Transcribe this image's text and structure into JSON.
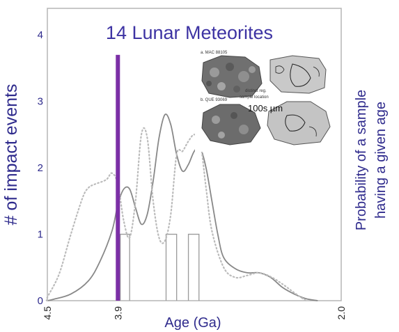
{
  "chart_data": {
    "type": "line",
    "title": "14 Lunar Meteorites",
    "xlabel": "Age (Ga)",
    "ylabel": "# of impact events",
    "ylabel_right": [
      "Probability of a sample",
      "having a given age"
    ],
    "x_reversed": true,
    "xlim": [
      4.5,
      2.0
    ],
    "ylim": [
      0,
      4.4
    ],
    "x_ticks": [
      "4.5",
      "3.9",
      "2.0"
    ],
    "y_ticks": [
      "0",
      "1",
      "2",
      "3",
      "4"
    ],
    "highlight": {
      "x": 3.9,
      "y_top": 3.7,
      "color": "#7b2fa6"
    },
    "histogram": [
      {
        "x0": 3.88,
        "x1": 3.8,
        "count": 1
      },
      {
        "x0": 3.49,
        "x1": 3.4,
        "count": 1
      },
      {
        "x0": 3.3,
        "x1": 3.21,
        "count": 1
      }
    ],
    "series": [
      {
        "style": "solid",
        "color": "#888888",
        "x": [
          4.6,
          4.45,
          4.3,
          4.15,
          4.05,
          3.95,
          3.9,
          3.85,
          3.8,
          3.75,
          3.7,
          3.65,
          3.6,
          3.55,
          3.5,
          3.45,
          3.4,
          3.35,
          3.3,
          3.25,
          3.2,
          3.15,
          3.1,
          3.05,
          3.0,
          2.9,
          2.8,
          2.7,
          2.6,
          2.5,
          2.4,
          2.3,
          2.2
        ],
        "y": [
          0.0,
          0.02,
          0.1,
          0.3,
          0.6,
          1.05,
          1.45,
          1.68,
          1.68,
          1.4,
          1.15,
          1.3,
          1.8,
          2.45,
          2.8,
          2.65,
          2.2,
          1.95,
          2.05,
          2.25,
          2.3,
          2.0,
          1.5,
          1.0,
          0.65,
          0.48,
          0.42,
          0.42,
          0.35,
          0.2,
          0.1,
          0.03,
          0.0
        ]
      },
      {
        "style": "dotted",
        "color": "#bbbbbb",
        "x": [
          4.62,
          4.5,
          4.4,
          4.3,
          4.2,
          4.15,
          4.1,
          4.0,
          3.95,
          3.9,
          3.85,
          3.8,
          3.75,
          3.7,
          3.65,
          3.6,
          3.55,
          3.5,
          3.45,
          3.4,
          3.35,
          3.3,
          3.25,
          3.2,
          3.15,
          3.1,
          3.0,
          2.9,
          2.8,
          2.7,
          2.6,
          2.5,
          2.4,
          2.3
        ],
        "y": [
          0.0,
          0.05,
          0.4,
          1.0,
          1.55,
          1.7,
          1.75,
          1.82,
          1.92,
          1.75,
          1.2,
          0.95,
          1.5,
          2.5,
          2.45,
          1.5,
          0.95,
          0.9,
          1.3,
          2.2,
          2.25,
          2.4,
          2.5,
          2.4,
          1.7,
          1.05,
          0.5,
          0.35,
          0.38,
          0.42,
          0.36,
          0.25,
          0.12,
          0.0
        ]
      }
    ]
  },
  "inset": {
    "label_a": "a. MAC 88105",
    "label_b": "b. QUE 93069",
    "note1": "distinct reg.",
    "note2": "sample location",
    "scale_text": "100s µm"
  }
}
